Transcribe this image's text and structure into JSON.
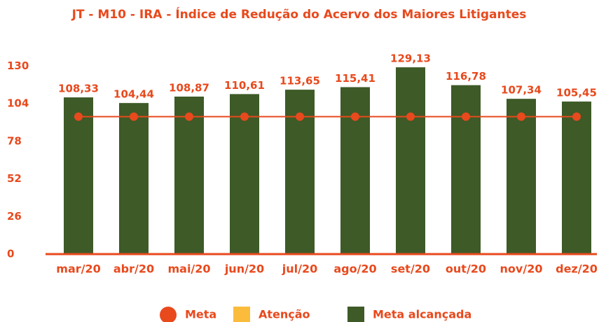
{
  "chart_data": {
    "type": "bar",
    "title": "JT - M10 - IRA - Índice de Redução do Acervo dos Maiores Litigantes",
    "categories": [
      "mar/20",
      "abr/20",
      "mai/20",
      "jun/20",
      "jul/20",
      "ago/20",
      "set/20",
      "out/20",
      "nov/20",
      "dez/20"
    ],
    "series": [
      {
        "name": "Meta",
        "type": "line",
        "color": "#e8491d",
        "values": [
          95,
          95,
          95,
          95,
          95,
          95,
          95,
          95,
          95,
          95
        ]
      },
      {
        "name": "Atenção",
        "type": "bar",
        "color": "#fbbc3c",
        "values": [
          null,
          null,
          null,
          null,
          null,
          null,
          null,
          null,
          null,
          null
        ]
      },
      {
        "name": "Meta alcançada",
        "type": "bar",
        "color": "#3d5a27",
        "values": [
          108.33,
          104.44,
          108.87,
          110.61,
          113.65,
          115.41,
          129.13,
          116.78,
          107.34,
          105.45
        ],
        "value_labels": [
          "108,33",
          "104,44",
          "108,87",
          "110,61",
          "113,65",
          "115,41",
          "129,13",
          "116,78",
          "107,34",
          "105,45"
        ]
      }
    ],
    "ylim": [
      0,
      135
    ],
    "yticks": [
      0,
      26,
      52,
      78,
      104,
      130
    ],
    "grid": false,
    "legend": "bottom"
  }
}
